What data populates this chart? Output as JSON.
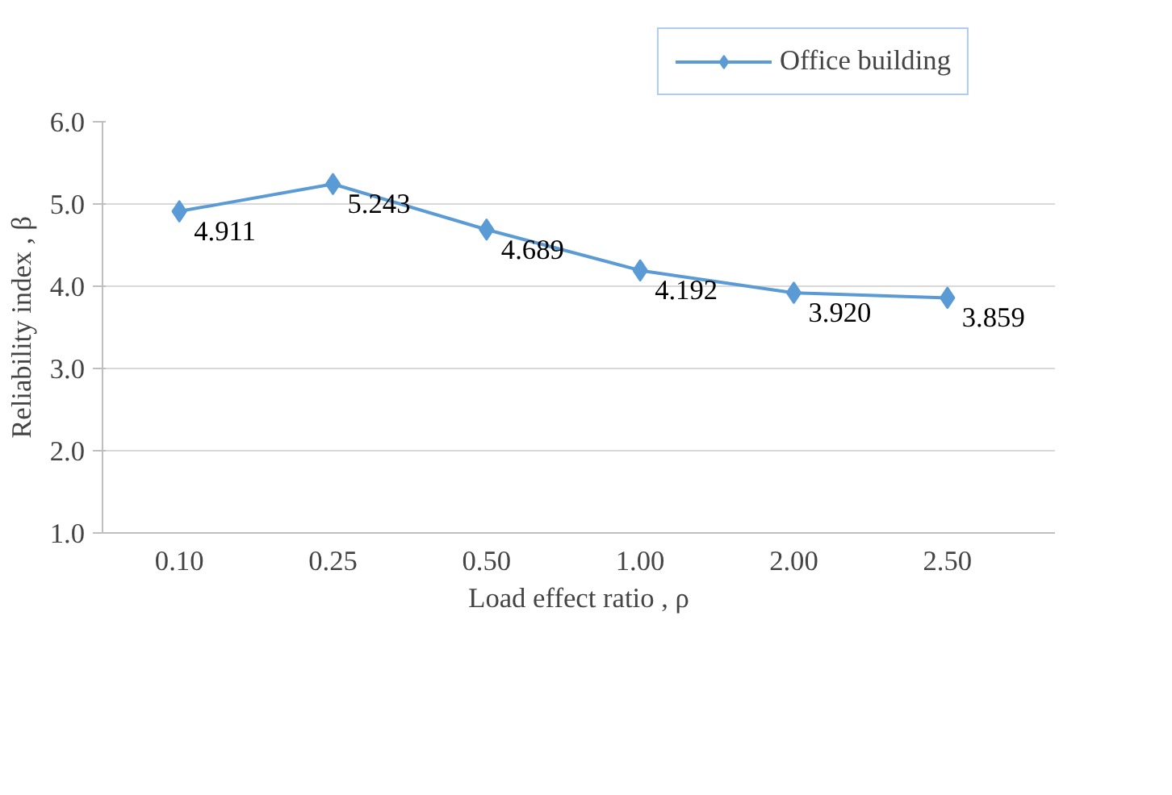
{
  "chart_data": {
    "type": "line",
    "xlabel": "Load effect ratio , ρ",
    "ylabel": "Reliability index , β",
    "categories": [
      "0.10",
      "0.25",
      "0.50",
      "1.00",
      "2.00",
      "2.50"
    ],
    "series": [
      {
        "name": "Office building",
        "color": "#5b9bd5",
        "values": [
          4.911,
          5.243,
          4.689,
          4.192,
          3.92,
          3.859
        ],
        "value_labels": [
          "4.911",
          "5.243",
          "4.689",
          "4.192",
          "3.920",
          "3.859"
        ]
      }
    ],
    "ylim": [
      1,
      6
    ],
    "yticks": [
      {
        "value": 1,
        "label": "1.0"
      },
      {
        "value": 2,
        "label": "2.0"
      },
      {
        "value": 3,
        "label": "3.0"
      },
      {
        "value": 4,
        "label": "4.0"
      },
      {
        "value": 5,
        "label": "5.0"
      },
      {
        "value": 6,
        "label": "6.0"
      }
    ],
    "grid": "y",
    "legend": "top right",
    "marker": "diamond",
    "line_style": "solid"
  }
}
